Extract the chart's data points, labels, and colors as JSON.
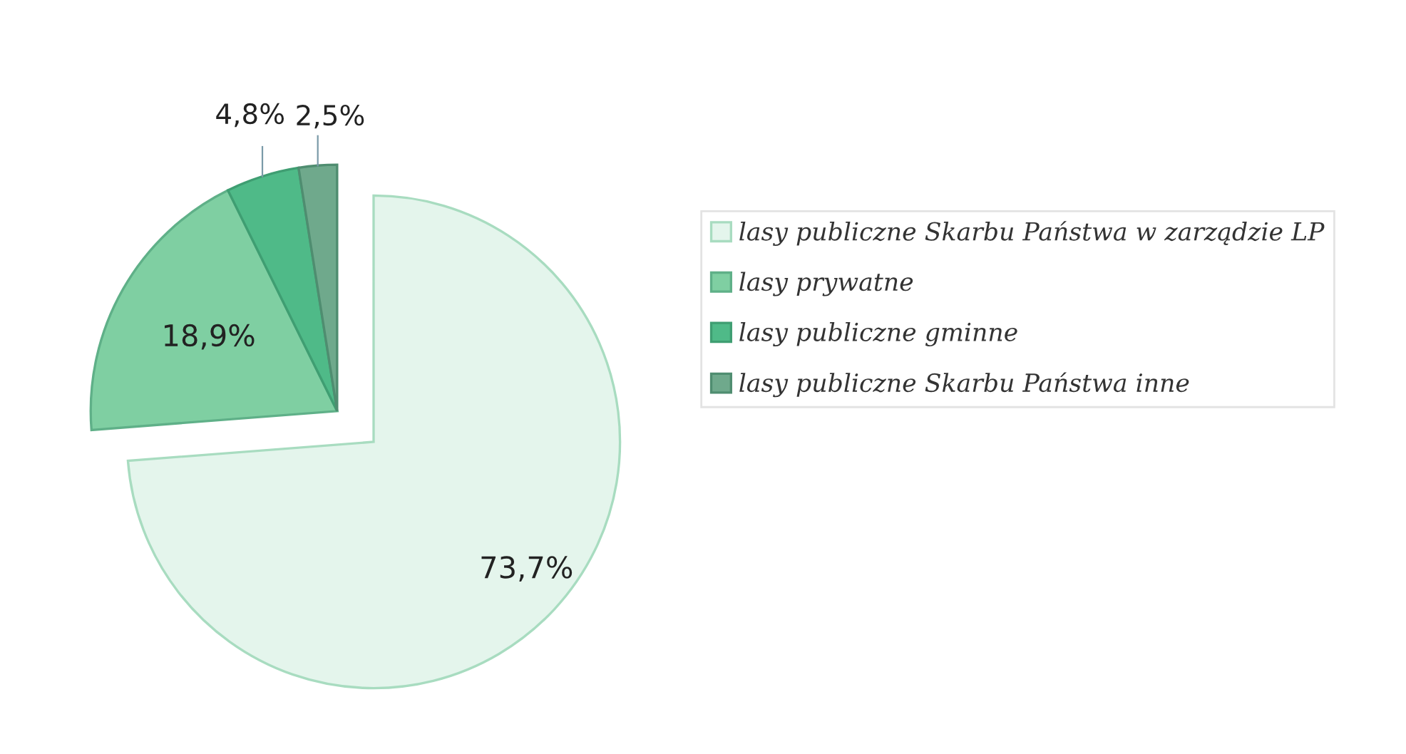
{
  "chart_data": {
    "type": "pie",
    "categories": [
      "lasy publiczne Skarbu Państwa w zarządzie LP",
      "lasy prywatne",
      "lasy publiczne gminne",
      "lasy publiczne Skarbu Państwa inne"
    ],
    "values": [
      73.7,
      18.9,
      4.8,
      2.5
    ],
    "colors": [
      "#e4f5ec",
      "#7fcfa2",
      "#4fba88",
      "#6fa98c"
    ],
    "value_labels": [
      "73,7%",
      "18,9%",
      "4,8%",
      "2,5%"
    ],
    "legend": "right"
  }
}
